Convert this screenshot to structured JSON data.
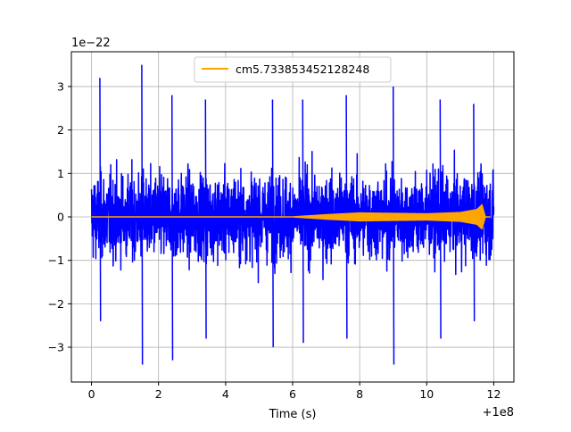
{
  "chart_data": {
    "type": "line",
    "title": "",
    "xlabel": "Time (s)",
    "ylabel": "",
    "x_offset_label": "+1e8",
    "y_scale_label": "1e−22",
    "xlim": [
      -0.6,
      12.6
    ],
    "ylim": [
      -3.8,
      3.8
    ],
    "x_ticks": [
      0,
      2,
      4,
      6,
      8,
      10,
      12
    ],
    "x_tick_labels": [
      "0",
      "2",
      "4",
      "6",
      "8",
      "10",
      "12"
    ],
    "y_ticks": [
      -3,
      -2,
      -1,
      0,
      1,
      2,
      3
    ],
    "y_tick_labels": [
      "−3",
      "−2",
      "−1",
      "0",
      "1",
      "2",
      "3"
    ],
    "grid": true,
    "legend_position": "upper-center",
    "series": [
      {
        "name": "",
        "color": "#0000ff",
        "style": "noise",
        "x_range": [
          0,
          12
        ],
        "typical_amplitude": 1.5,
        "peaks": [
          [
            0.25,
            3.2,
            -2.4
          ],
          [
            1.5,
            3.5,
            -3.4
          ],
          [
            2.4,
            2.8,
            -3.3
          ],
          [
            3.4,
            2.7,
            -2.8
          ],
          [
            5.4,
            2.7,
            -3.0
          ],
          [
            6.3,
            2.7,
            -2.9
          ],
          [
            7.6,
            2.8,
            -2.8
          ],
          [
            9.0,
            3.0,
            -3.4
          ],
          [
            10.4,
            2.7,
            -2.8
          ],
          [
            11.4,
            2.6,
            -2.4
          ]
        ]
      },
      {
        "name": "cm5.733853452128248",
        "color": "#ffa500",
        "style": "chirp",
        "x_range": [
          0,
          11.9
        ],
        "envelope": [
          [
            0,
            0.0
          ],
          [
            6.0,
            0.0
          ],
          [
            7.0,
            0.05
          ],
          [
            8.0,
            0.09
          ],
          [
            9.0,
            0.08
          ],
          [
            10.0,
            0.07
          ],
          [
            11.0,
            0.1
          ],
          [
            11.5,
            0.17
          ],
          [
            11.65,
            0.28
          ],
          [
            11.75,
            0.0
          ],
          [
            11.9,
            0.0
          ]
        ]
      }
    ]
  }
}
